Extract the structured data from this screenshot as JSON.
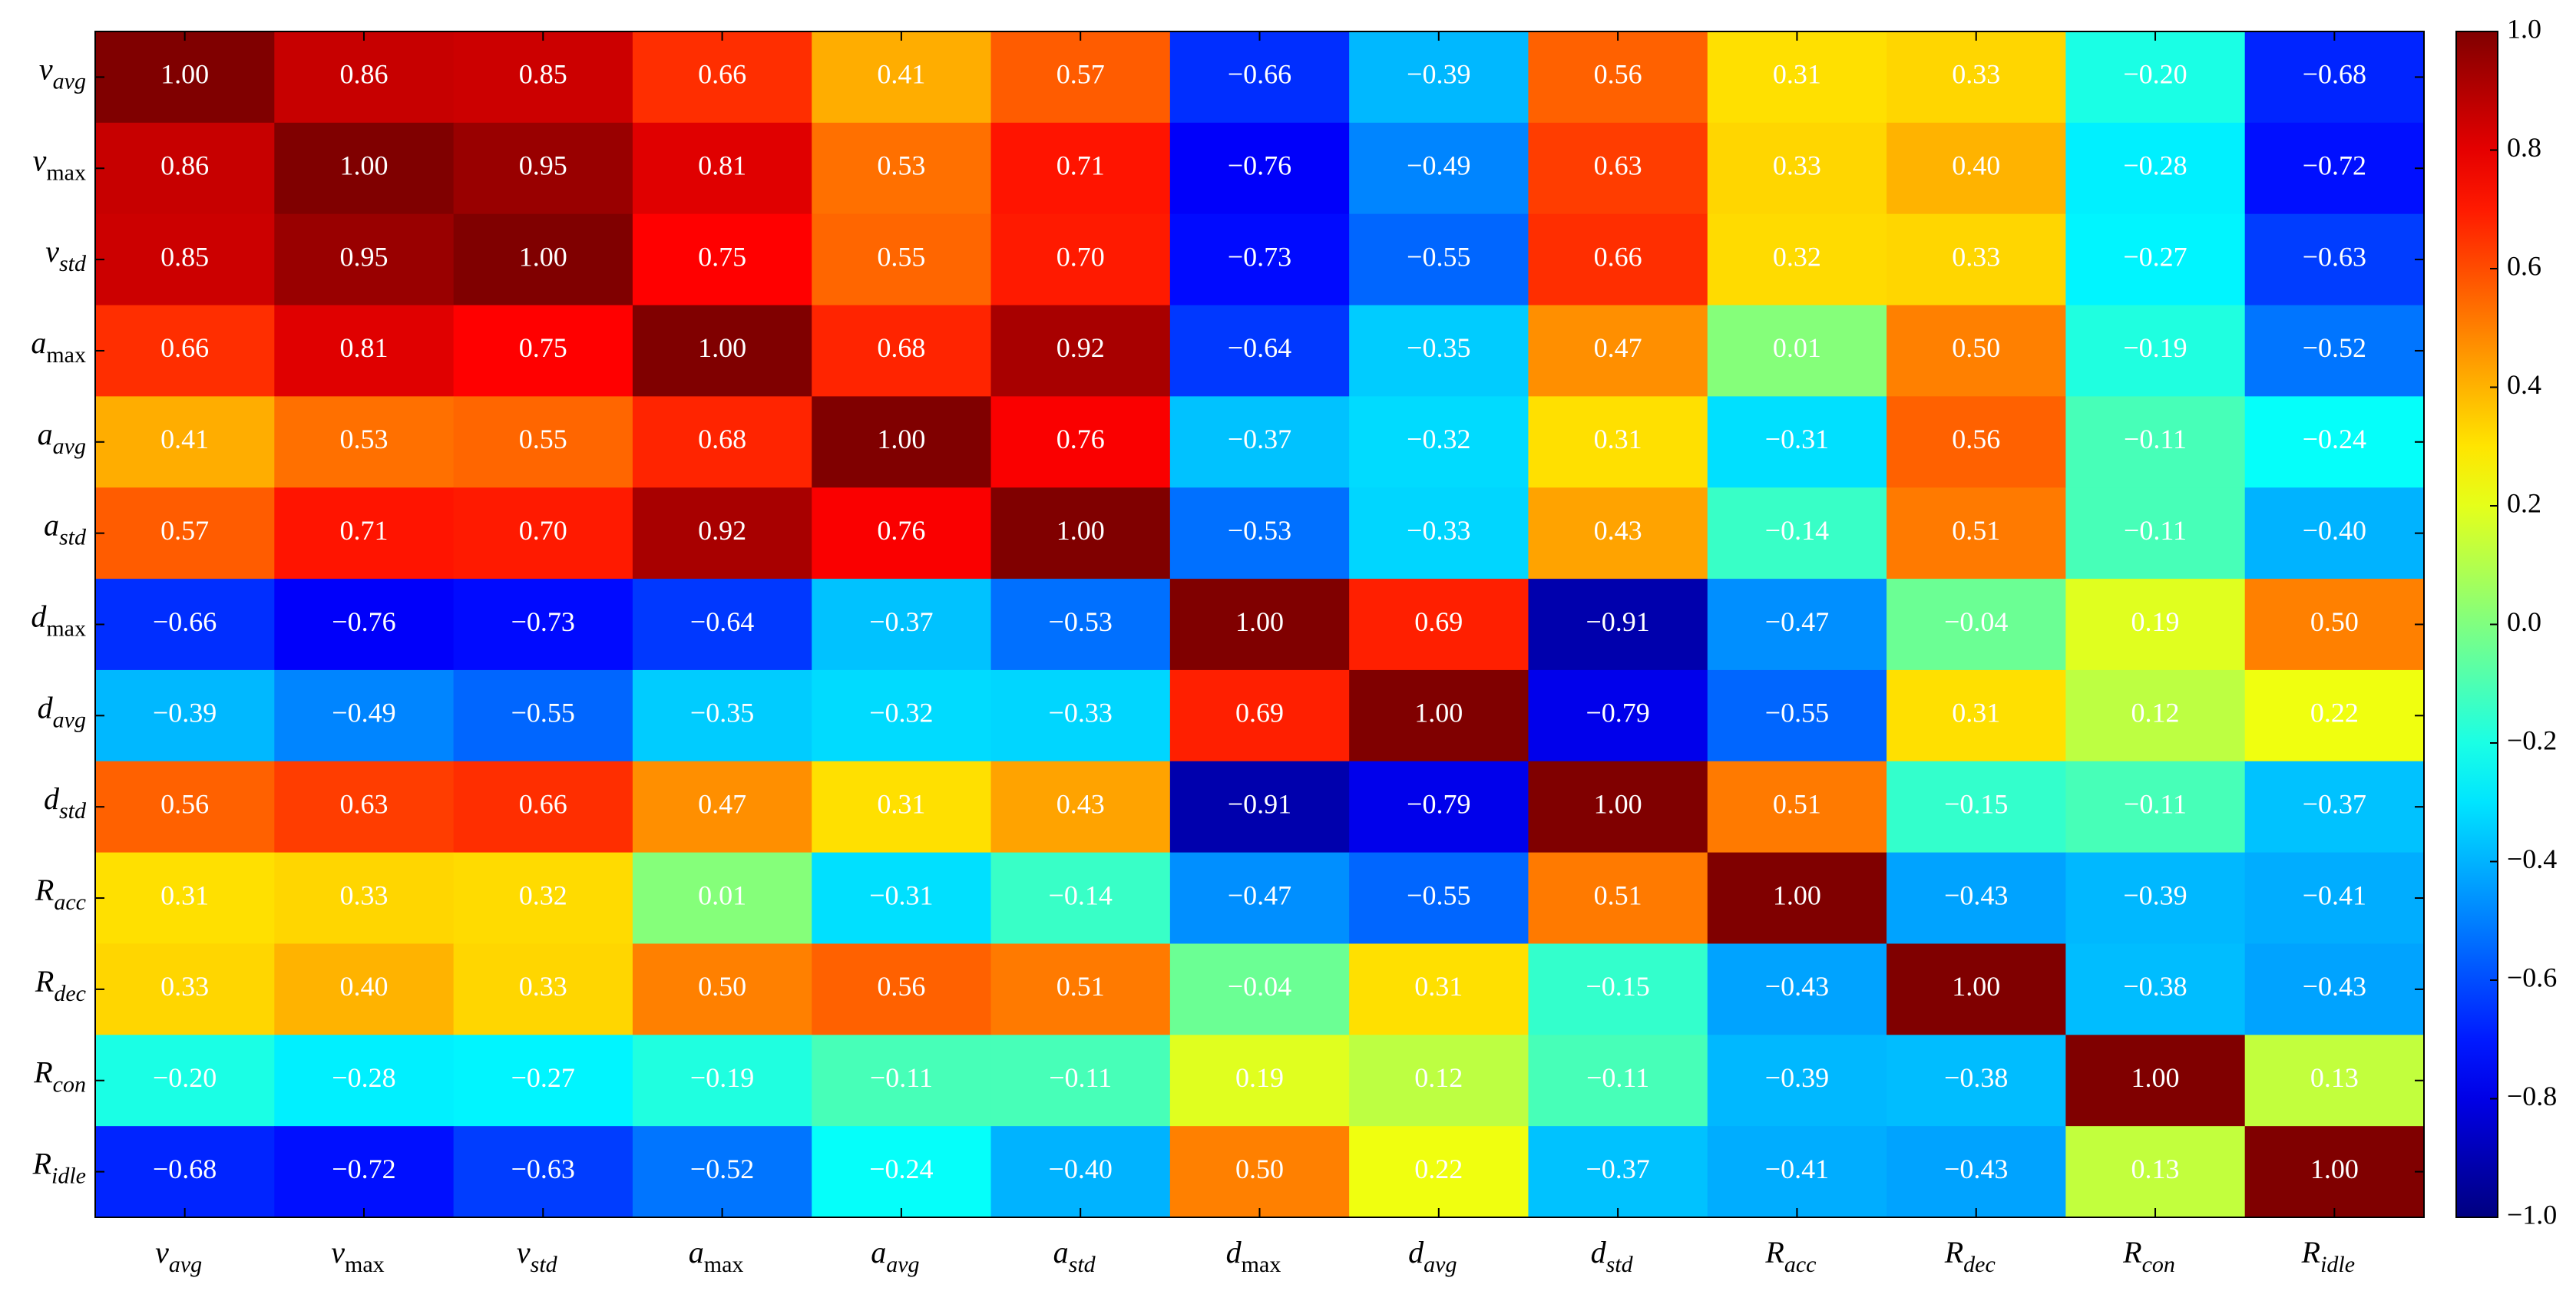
{
  "chart_data": {
    "type": "heatmap",
    "colormap": "jet",
    "clim": [
      -1,
      1
    ],
    "categories": [
      {
        "symbol": "v",
        "sub": "avg"
      },
      {
        "symbol": "v",
        "sub": "max"
      },
      {
        "symbol": "v",
        "sub": "std"
      },
      {
        "symbol": "a",
        "sub": "max"
      },
      {
        "symbol": "a",
        "sub": "avg"
      },
      {
        "symbol": "a",
        "sub": "std"
      },
      {
        "symbol": "d",
        "sub": "max"
      },
      {
        "symbol": "d",
        "sub": "avg"
      },
      {
        "symbol": "d",
        "sub": "std"
      },
      {
        "symbol": "R",
        "sub": "acc"
      },
      {
        "symbol": "R",
        "sub": "dec"
      },
      {
        "symbol": "R",
        "sub": "con"
      },
      {
        "symbol": "R",
        "sub": "idle"
      }
    ],
    "values": [
      [
        1.0,
        0.86,
        0.85,
        0.66,
        0.41,
        0.57,
        -0.66,
        -0.39,
        0.56,
        0.31,
        0.33,
        -0.2,
        -0.68
      ],
      [
        0.86,
        1.0,
        0.95,
        0.81,
        0.53,
        0.71,
        -0.76,
        -0.49,
        0.63,
        0.33,
        0.4,
        -0.28,
        -0.72
      ],
      [
        0.85,
        0.95,
        1.0,
        0.75,
        0.55,
        0.7,
        -0.73,
        -0.55,
        0.66,
        0.32,
        0.33,
        -0.27,
        -0.63
      ],
      [
        0.66,
        0.81,
        0.75,
        1.0,
        0.68,
        0.92,
        -0.64,
        -0.35,
        0.47,
        0.01,
        0.5,
        -0.19,
        -0.52
      ],
      [
        0.41,
        0.53,
        0.55,
        0.68,
        1.0,
        0.76,
        -0.37,
        -0.32,
        0.31,
        -0.31,
        0.56,
        -0.11,
        -0.24
      ],
      [
        0.57,
        0.71,
        0.7,
        0.92,
        0.76,
        1.0,
        -0.53,
        -0.33,
        0.43,
        -0.14,
        0.51,
        -0.11,
        -0.4
      ],
      [
        -0.66,
        -0.76,
        -0.73,
        -0.64,
        -0.37,
        -0.53,
        1.0,
        0.69,
        -0.91,
        -0.47,
        -0.04,
        0.19,
        0.5
      ],
      [
        -0.39,
        -0.49,
        -0.55,
        -0.35,
        -0.32,
        -0.33,
        0.69,
        1.0,
        -0.79,
        -0.55,
        0.31,
        0.12,
        0.22
      ],
      [
        0.56,
        0.63,
        0.66,
        0.47,
        0.31,
        0.43,
        -0.91,
        -0.79,
        1.0,
        0.51,
        -0.15,
        -0.11,
        -0.37
      ],
      [
        0.31,
        0.33,
        0.32,
        0.01,
        -0.31,
        -0.14,
        -0.47,
        -0.55,
        0.51,
        1.0,
        -0.43,
        -0.39,
        -0.41
      ],
      [
        0.33,
        0.4,
        0.33,
        0.5,
        0.56,
        0.51,
        -0.04,
        0.31,
        -0.15,
        -0.43,
        1.0,
        -0.38,
        -0.43
      ],
      [
        -0.2,
        -0.28,
        -0.27,
        -0.19,
        -0.11,
        -0.11,
        0.19,
        0.12,
        -0.11,
        -0.39,
        -0.38,
        1.0,
        0.13
      ],
      [
        -0.68,
        -0.72,
        -0.63,
        -0.52,
        -0.24,
        -0.4,
        0.5,
        0.22,
        -0.37,
        -0.41,
        -0.43,
        0.13,
        1.0
      ]
    ],
    "value_labels": [
      [
        "1.00",
        "0.86",
        "0.85",
        "0.66",
        "0.41",
        "0.57",
        "−0.66",
        "−0.39",
        "0.56",
        "0.31",
        "0.33",
        "−0.20",
        "−0.68"
      ],
      [
        "0.86",
        "1.00",
        "0.95",
        "0.81",
        "0.53",
        "0.71",
        "−0.76",
        "−0.49",
        "0.63",
        "0.33",
        "0.40",
        "−0.28",
        "−0.72"
      ],
      [
        "0.85",
        "0.95",
        "1.00",
        "0.75",
        "0.55",
        "0.70",
        "−0.73",
        "−0.55",
        "0.66",
        "0.32",
        "0.33",
        "−0.27",
        "−0.63"
      ],
      [
        "0.66",
        "0.81",
        "0.75",
        "1.00",
        "0.68",
        "0.92",
        "−0.64",
        "−0.35",
        "0.47",
        "0.01",
        "0.50",
        "−0.19",
        "−0.52"
      ],
      [
        "0.41",
        "0.53",
        "0.55",
        "0.68",
        "1.00",
        "0.76",
        "−0.37",
        "−0.32",
        "0.31",
        "−0.31",
        "0.56",
        "−0.11",
        "−0.24"
      ],
      [
        "0.57",
        "0.71",
        "0.70",
        "0.92",
        "0.76",
        "1.00",
        "−0.53",
        "−0.33",
        "0.43",
        "−0.14",
        "0.51",
        "−0.11",
        "−0.40"
      ],
      [
        "−0.66",
        "−0.76",
        "−0.73",
        "−0.64",
        "−0.37",
        "−0.53",
        "1.00",
        "0.69",
        "−0.91",
        "−0.47",
        "−0.04",
        "0.19",
        "0.50"
      ],
      [
        "−0.39",
        "−0.49",
        "−0.55",
        "−0.35",
        "−0.32",
        "−0.33",
        "0.69",
        "1.00",
        "−0.79",
        "−0.55",
        "0.31",
        "0.12",
        "0.22"
      ],
      [
        "0.56",
        "0.63",
        "0.66",
        "0.47",
        "0.31",
        "0.43",
        "−0.91",
        "−0.79",
        "1.00",
        "0.51",
        "−0.15",
        "−0.11",
        "−0.37"
      ],
      [
        "0.31",
        "0.33",
        "0.32",
        "0.01",
        "−0.31",
        "−0.14",
        "−0.47",
        "−0.55",
        "0.51",
        "1.00",
        "−0.43",
        "−0.39",
        "−0.41"
      ],
      [
        "0.33",
        "0.40",
        "0.33",
        "0.50",
        "0.56",
        "0.51",
        "−0.04",
        "0.31",
        "−0.15",
        "−0.43",
        "1.00",
        "−0.38",
        "−0.43"
      ],
      [
        "−0.20",
        "−0.28",
        "−0.27",
        "−0.19",
        "−0.11",
        "−0.11",
        "0.19",
        "0.12",
        "−0.11",
        "−0.39",
        "−0.38",
        "1.00",
        "0.13"
      ],
      [
        "−0.68",
        "−0.72",
        "−0.63",
        "−0.52",
        "−0.24",
        "−0.40",
        "0.50",
        "0.22",
        "−0.37",
        "−0.41",
        "−0.43",
        "0.13",
        "1.00"
      ]
    ],
    "cticks": [
      {
        "value": 1.0,
        "label": "1.0"
      },
      {
        "value": 0.8,
        "label": "0.8"
      },
      {
        "value": 0.6,
        "label": "0.6"
      },
      {
        "value": 0.4,
        "label": "0.4"
      },
      {
        "value": 0.2,
        "label": "0.2"
      },
      {
        "value": 0.0,
        "label": "0.0"
      },
      {
        "value": -0.2,
        "label": "−0.2"
      },
      {
        "value": -0.4,
        "label": "−0.4"
      },
      {
        "value": -0.6,
        "label": "−0.6"
      },
      {
        "value": -0.8,
        "label": "−0.8"
      },
      {
        "value": -1.0,
        "label": "−1.0"
      }
    ]
  }
}
